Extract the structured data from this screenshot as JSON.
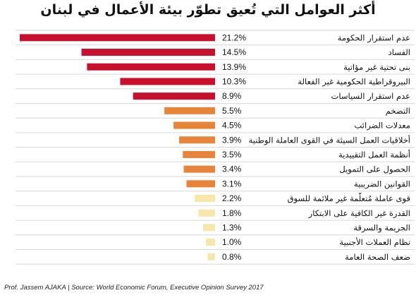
{
  "chart_data": {
    "type": "bar",
    "orientation": "horizontal",
    "title": "أكثر العوامل التي تُعيق تطوّر بيئة الأعمال في لبنان",
    "categories": [
      "عدم استقرار الحكومة",
      "الفساد",
      "بنى تحتية غير مؤاتية",
      "البيروقراطية الحكومية غير الفعالة",
      "عدم استقرار السياسات",
      "التضخم",
      "معدلات الضرائب",
      "أخلاقيات العمل السيئة في القوى العاملة الوطنية",
      "أنظمة العمل التقييدية",
      "الحصول على التمويل",
      "القوانين الضريبية",
      "قوى عاملة مُتعلّمة غير ملائمة للسوق",
      "القدرة غير الكافية على الابتكار",
      "الجريمة والسرقة",
      "نظام العملات الأجنبية",
      "ضعف الصحة العامة"
    ],
    "values": [
      21.2,
      14.5,
      13.9,
      10.3,
      8.9,
      5.5,
      4.5,
      3.9,
      3.5,
      3.4,
      3.1,
      2.2,
      1.8,
      1.3,
      1.0,
      0.8
    ],
    "value_labels": [
      "21.2%",
      "14.5%",
      "13.9%",
      "10.3%",
      "8.9%",
      "5.5%",
      "4.5%",
      "3.9%",
      "3.5%",
      "3.4%",
      "3.1%",
      "2.2%",
      "1.8%",
      "1.3%",
      "1.0%",
      "0.8%"
    ],
    "xlim": [
      0,
      21.2
    ],
    "bar_direction": "right-to-left",
    "grid": true,
    "colors": {
      "high": "#c8102e",
      "medium": "#e8833a",
      "low": "#f8e6a8",
      "grid": "#d6d6d6"
    }
  },
  "footer": "Prof. Jassem AJAKA | Source: World Economic Forum, Executive Opinion Survey 2017"
}
